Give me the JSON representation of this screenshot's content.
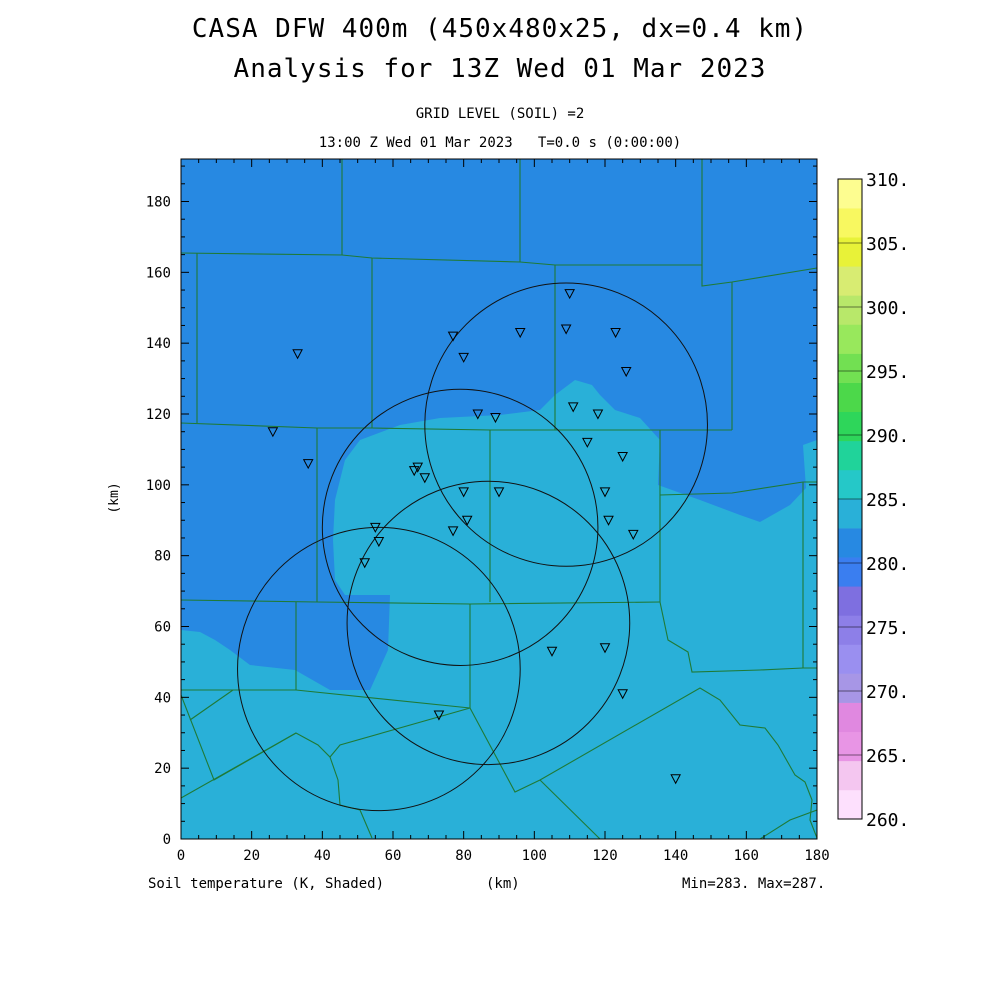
{
  "header": {
    "title_line1": "CASA DFW 400m (450x480x25, dx=0.4 km)",
    "title_line2": "Analysis for 13Z Wed 01 Mar 2023",
    "grid_level": "GRID LEVEL (SOIL) =2",
    "time_line": "13:00 Z Wed 01 Mar 2023   T=0.0 s (0:00:00)"
  },
  "footer": {
    "field_label": "Soil temperature (K, Shaded)",
    "x_unit": "(km)",
    "minmax": "Min=283. Max=287."
  },
  "chart_data": {
    "type": "heatmap",
    "title": "CASA DFW 400m (450x480x25, dx=0.4 km)",
    "subtitle": "Analysis for 13Z Wed 01 Mar 2023",
    "xlabel": "(km)",
    "ylabel": "(km)",
    "xlim": [
      0,
      180
    ],
    "ylim": [
      0,
      192
    ],
    "x_ticks": [
      0,
      20,
      40,
      60,
      80,
      100,
      120,
      140,
      160,
      180
    ],
    "y_ticks": [
      0,
      20,
      40,
      60,
      80,
      100,
      120,
      140,
      160,
      180
    ],
    "field": "Soil temperature (K)",
    "min": 283,
    "max": 287,
    "colorbar": {
      "labels": [
        "260.",
        "265.",
        "270.",
        "275.",
        "280.",
        "285.",
        "290.",
        "295.",
        "300.",
        "305.",
        "310."
      ],
      "colors": [
        "#fde0fd",
        "#f4c6f0",
        "#e895e5",
        "#e088e0",
        "#a796e6",
        "#9a8ff0",
        "#8d7fe8",
        "#7e6fe0",
        "#3a7ef0",
        "#2789e2",
        "#29b0d8",
        "#25c8c8",
        "#20d39a",
        "#2ed65a",
        "#4cd84a",
        "#72e052",
        "#98e85c",
        "#b8e86a",
        "#d8ec72",
        "#e8f238",
        "#f8f860",
        "#fdfd90"
      ]
    },
    "regions": [
      {
        "name": "285 K region",
        "color": "#2789e2"
      },
      {
        "name": "286 K region",
        "color": "#29b0d8"
      }
    ],
    "radar_rings": [
      {
        "cx": 109,
        "cy": 117,
        "r": 40
      },
      {
        "cx": 79,
        "cy": 88,
        "r": 39
      },
      {
        "cx": 87,
        "cy": 61,
        "r": 40
      },
      {
        "cx": 56,
        "cy": 48,
        "r": 40
      }
    ],
    "stations": [
      [
        33,
        137
      ],
      [
        26,
        115
      ],
      [
        36,
        106
      ],
      [
        77,
        142
      ],
      [
        80,
        136
      ],
      [
        96,
        143
      ],
      [
        110,
        154
      ],
      [
        109,
        144
      ],
      [
        123,
        143
      ],
      [
        126,
        132
      ],
      [
        84,
        120
      ],
      [
        89,
        119
      ],
      [
        111,
        122
      ],
      [
        118,
        120
      ],
      [
        115,
        112
      ],
      [
        125,
        108
      ],
      [
        66,
        104
      ],
      [
        69,
        102
      ],
      [
        67,
        105
      ],
      [
        80,
        98
      ],
      [
        90,
        98
      ],
      [
        120,
        98
      ],
      [
        121,
        90
      ],
      [
        128,
        86
      ],
      [
        81,
        90
      ],
      [
        77,
        87
      ],
      [
        55,
        88
      ],
      [
        56,
        84
      ],
      [
        52,
        78
      ],
      [
        105,
        53
      ],
      [
        120,
        54
      ],
      [
        125,
        41
      ],
      [
        73,
        35
      ],
      [
        140,
        17
      ]
    ]
  }
}
